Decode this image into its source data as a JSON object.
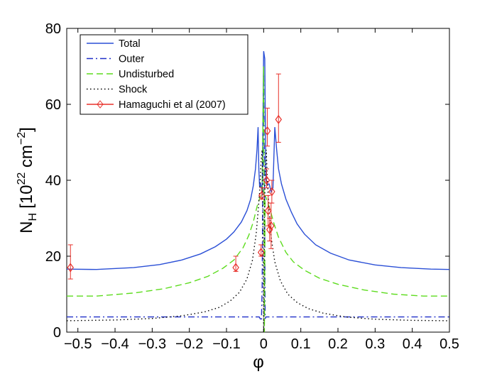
{
  "chart_data": {
    "type": "line",
    "title": "",
    "xlabel": "φ",
    "ylabel_main": "N",
    "ylabel_sub": "H",
    "ylabel_unit_prefix": "[10",
    "ylabel_exp1": "22",
    "ylabel_unit_mid": " cm",
    "ylabel_exp2": "−2",
    "ylabel_unit_suffix": "]",
    "xlim": [
      -0.53,
      0.5
    ],
    "ylim": [
      0,
      80
    ],
    "xticks": [
      -0.5,
      -0.4,
      -0.3,
      -0.2,
      -0.1,
      0,
      0.1,
      0.2,
      0.3,
      0.4,
      0.5
    ],
    "xtick_labels": [
      "−0.5",
      "−0.4",
      "−0.3",
      "−0.2",
      "−0.1",
      "0",
      "0.1",
      "0.2",
      "0.3",
      "0.4",
      "0.5"
    ],
    "yticks": [
      0,
      20,
      40,
      60,
      80
    ],
    "ytick_labels": [
      "0",
      "20",
      "40",
      "60",
      "80"
    ],
    "legend_position": "top-left",
    "legend": [
      {
        "label": "Total",
        "color": "#2a4fd6",
        "style": "solid",
        "marker": "none"
      },
      {
        "label": "Outer",
        "color": "#1f2fc8",
        "style": "dashdot",
        "marker": "none"
      },
      {
        "label": "Undisturbed",
        "color": "#5ddc1e",
        "style": "dashed",
        "marker": "none"
      },
      {
        "label": "Shock",
        "color": "#000000",
        "style": "dotted",
        "marker": "none"
      },
      {
        "label": "Hamaguchi et al (2007)",
        "color": "#e8302a",
        "style": "solid",
        "marker": "diamond"
      }
    ],
    "series": [
      {
        "name": "Total",
        "points": [
          [
            -0.53,
            16.6
          ],
          [
            -0.45,
            16.5
          ],
          [
            -0.35,
            17.0
          ],
          [
            -0.28,
            17.8
          ],
          [
            -0.22,
            19.0
          ],
          [
            -0.17,
            20.6
          ],
          [
            -0.13,
            22.5
          ],
          [
            -0.1,
            24.5
          ],
          [
            -0.08,
            26.4
          ],
          [
            -0.06,
            29.0
          ],
          [
            -0.045,
            32.0
          ],
          [
            -0.035,
            35.0
          ],
          [
            -0.028,
            38.5
          ],
          [
            -0.022,
            43.0
          ],
          [
            -0.018,
            48.0
          ],
          [
            -0.015,
            54.0
          ],
          [
            -0.013,
            43.0
          ],
          [
            -0.011,
            38.5
          ],
          [
            -0.008,
            39.0
          ],
          [
            -0.006,
            38.0
          ],
          [
            -0.004,
            37.0
          ],
          [
            -0.002,
            55.0
          ],
          [
            0.0,
            74.0
          ],
          [
            0.003,
            72.0
          ],
          [
            0.006,
            40.0
          ],
          [
            0.01,
            39.0
          ],
          [
            0.015,
            39.0
          ],
          [
            0.02,
            37.0
          ],
          [
            0.025,
            38.0
          ],
          [
            0.03,
            54.0
          ],
          [
            0.035,
            48.0
          ],
          [
            0.04,
            43.0
          ],
          [
            0.048,
            39.0
          ],
          [
            0.06,
            35.0
          ],
          [
            0.075,
            31.5
          ],
          [
            0.09,
            28.5
          ],
          [
            0.11,
            25.8
          ],
          [
            0.14,
            23.0
          ],
          [
            0.18,
            20.8
          ],
          [
            0.23,
            19.0
          ],
          [
            0.3,
            17.7
          ],
          [
            0.37,
            17.0
          ],
          [
            0.45,
            16.6
          ],
          [
            0.5,
            16.5
          ]
        ]
      },
      {
        "name": "Outer",
        "points": [
          [
            -0.53,
            4.0
          ],
          [
            -0.012,
            4.0
          ],
          [
            -0.006,
            3.0
          ],
          [
            -0.004,
            12.0
          ],
          [
            -0.002,
            45.0
          ],
          [
            0.0,
            68.0
          ],
          [
            0.002,
            45.0
          ],
          [
            0.004,
            3.5
          ],
          [
            0.006,
            4.0
          ],
          [
            0.5,
            4.0
          ]
        ]
      },
      {
        "name": "Undisturbed",
        "points": [
          [
            -0.53,
            9.5
          ],
          [
            -0.45,
            9.5
          ],
          [
            -0.35,
            10.3
          ],
          [
            -0.27,
            11.4
          ],
          [
            -0.2,
            13.0
          ],
          [
            -0.15,
            14.7
          ],
          [
            -0.11,
            16.8
          ],
          [
            -0.08,
            19.0
          ],
          [
            -0.055,
            22.3
          ],
          [
            -0.04,
            25.5
          ],
          [
            -0.028,
            29.0
          ],
          [
            -0.018,
            33.0
          ],
          [
            -0.01,
            35.5
          ],
          [
            -0.004,
            37.0
          ],
          [
            -0.002,
            55.0
          ],
          [
            0.0,
            70.0
          ],
          [
            0.002,
            0.0
          ],
          [
            0.004,
            36.0
          ],
          [
            0.01,
            34.5
          ],
          [
            0.018,
            32.0
          ],
          [
            0.028,
            28.5
          ],
          [
            0.04,
            25.0
          ],
          [
            0.06,
            21.0
          ],
          [
            0.08,
            18.5
          ],
          [
            0.11,
            16.3
          ],
          [
            0.15,
            14.2
          ],
          [
            0.2,
            12.6
          ],
          [
            0.27,
            11.1
          ],
          [
            0.35,
            10.0
          ],
          [
            0.43,
            9.5
          ],
          [
            0.5,
            9.5
          ]
        ]
      },
      {
        "name": "Shock",
        "points": [
          [
            -0.53,
            3.0
          ],
          [
            -0.4,
            3.2
          ],
          [
            -0.3,
            3.6
          ],
          [
            -0.22,
            4.3
          ],
          [
            -0.16,
            5.3
          ],
          [
            -0.12,
            6.5
          ],
          [
            -0.09,
            8.2
          ],
          [
            -0.065,
            10.5
          ],
          [
            -0.045,
            14.0
          ],
          [
            -0.03,
            19.0
          ],
          [
            -0.02,
            26.0
          ],
          [
            -0.014,
            33.0
          ],
          [
            -0.01,
            38.0
          ],
          [
            -0.007,
            45.0
          ],
          [
            -0.004,
            48.0
          ],
          [
            -0.002,
            30.0
          ],
          [
            0.0,
            0.0
          ],
          [
            0.002,
            30.0
          ],
          [
            0.004,
            42.0
          ],
          [
            0.007,
            48.0
          ],
          [
            0.01,
            40.0
          ],
          [
            0.014,
            33.0
          ],
          [
            0.02,
            25.0
          ],
          [
            0.03,
            18.5
          ],
          [
            0.045,
            13.5
          ],
          [
            0.065,
            10.0
          ],
          [
            0.09,
            7.8
          ],
          [
            0.12,
            6.2
          ],
          [
            0.16,
            5.0
          ],
          [
            0.22,
            4.0
          ],
          [
            0.3,
            3.4
          ],
          [
            0.4,
            3.1
          ],
          [
            0.5,
            3.0
          ]
        ]
      }
    ],
    "observations": {
      "name": "Hamaguchi et al (2007)",
      "points": [
        {
          "x": -0.52,
          "y": 17,
          "err_low": 3,
          "err_high": 6
        },
        {
          "x": -0.075,
          "y": 17,
          "err_low": 1,
          "err_high": 3
        },
        {
          "x": -0.007,
          "y": 21,
          "err_low": 1,
          "err_high": 2
        },
        {
          "x": -0.005,
          "y": 36,
          "err_low": 1,
          "err_high": 2
        },
        {
          "x": 0.008,
          "y": 40,
          "err_low": 2,
          "err_high": 3
        },
        {
          "x": 0.01,
          "y": 53,
          "err_low": 4,
          "err_high": 6
        },
        {
          "x": 0.012,
          "y": 32,
          "err_low": 4,
          "err_high": 4
        },
        {
          "x": 0.016,
          "y": 27,
          "err_low": 3,
          "err_high": 3
        },
        {
          "x": 0.022,
          "y": 37,
          "err_low": 3,
          "err_high": 3
        },
        {
          "x": 0.02,
          "y": 28,
          "err_low": 6,
          "err_high": 6
        },
        {
          "x": 0.04,
          "y": 56,
          "err_low": 6,
          "err_high": 12
        }
      ]
    }
  }
}
